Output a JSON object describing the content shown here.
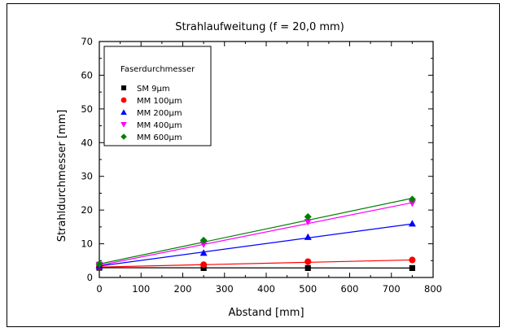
{
  "chart_data": {
    "type": "scatter",
    "title": "Strahlaufweitung (f = 20,0 mm)",
    "xlabel": "Abstand [mm]",
    "ylabel": "Strahldurchmesser [mm]",
    "xlim": [
      0,
      800
    ],
    "ylim": [
      0,
      70
    ],
    "xticks": [
      0,
      100,
      200,
      300,
      400,
      500,
      600,
      700,
      800
    ],
    "yticks": [
      0,
      10,
      20,
      30,
      40,
      50,
      60,
      70
    ],
    "grid": false,
    "legend": {
      "title": "Faserdurchmesser",
      "position": "top-left"
    },
    "series": [
      {
        "name": "SM 9µm",
        "marker": "square",
        "color": "#000000",
        "x": [
          0,
          250,
          500,
          750
        ],
        "y": [
          2.9,
          2.8,
          2.8,
          2.8
        ],
        "fit": [
          [
            0,
            2.9
          ],
          [
            750,
            2.8
          ]
        ]
      },
      {
        "name": "MM 100µm",
        "marker": "circle",
        "color": "#ff0000",
        "x": [
          0,
          250,
          500,
          750
        ],
        "y": [
          3.2,
          3.8,
          4.7,
          5.2
        ],
        "fit": [
          [
            0,
            3.1
          ],
          [
            750,
            5.2
          ]
        ]
      },
      {
        "name": "MM 200µm",
        "marker": "triangle-up",
        "color": "#0000ff",
        "x": [
          0,
          250,
          500,
          750
        ],
        "y": [
          3.5,
          7.3,
          12.0,
          16.0
        ],
        "fit": [
          [
            0,
            3.4
          ],
          [
            750,
            15.9
          ]
        ]
      },
      {
        "name": "MM 400µm",
        "marker": "triangle-down",
        "color": "#ff00ff",
        "x": [
          0,
          250,
          500,
          750
        ],
        "y": [
          3.8,
          9.8,
          16.5,
          22.0
        ],
        "fit": [
          [
            0,
            3.6
          ],
          [
            750,
            22.2
          ]
        ]
      },
      {
        "name": "MM 600µm",
        "marker": "diamond",
        "color": "#008000",
        "x": [
          0,
          250,
          500,
          750
        ],
        "y": [
          4.0,
          11.0,
          18.0,
          23.2
        ],
        "fit": [
          [
            0,
            4.0
          ],
          [
            750,
            23.5
          ]
        ]
      }
    ]
  }
}
